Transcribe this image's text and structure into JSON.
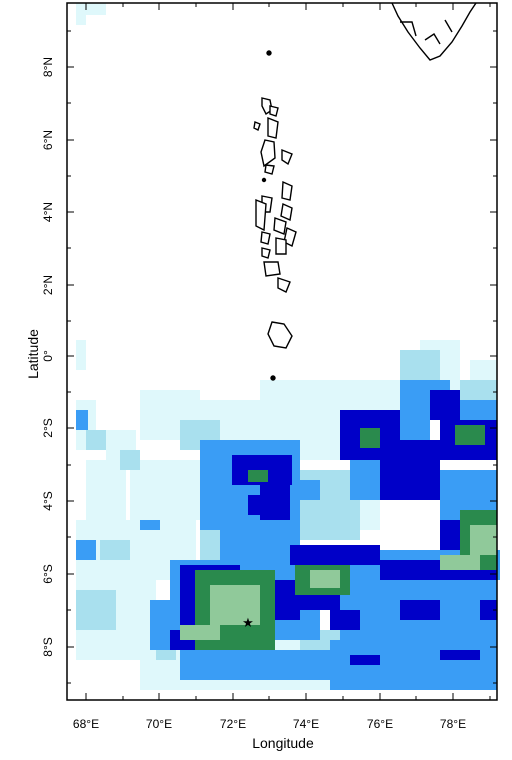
{
  "axes": {
    "xlabel": "Longitude",
    "ylabel": "Latitude",
    "x_ticks": [
      "68°E",
      "70°E",
      "72°E",
      "74°E",
      "76°E",
      "78°E"
    ],
    "y_ticks": [
      "8°N",
      "6°N",
      "4°N",
      "2°N",
      "0°",
      "2°S",
      "4°S",
      "6°S",
      "8°S"
    ]
  },
  "colors": {
    "very_light": "#dff8fb",
    "light": "#a9e0ee",
    "medium": "#3a9df5",
    "dark": "#0000c8",
    "green": "#2a8a4d",
    "light_green": "#90c99a"
  },
  "marker": {
    "symbol": "★",
    "name": "star-marker"
  }
}
